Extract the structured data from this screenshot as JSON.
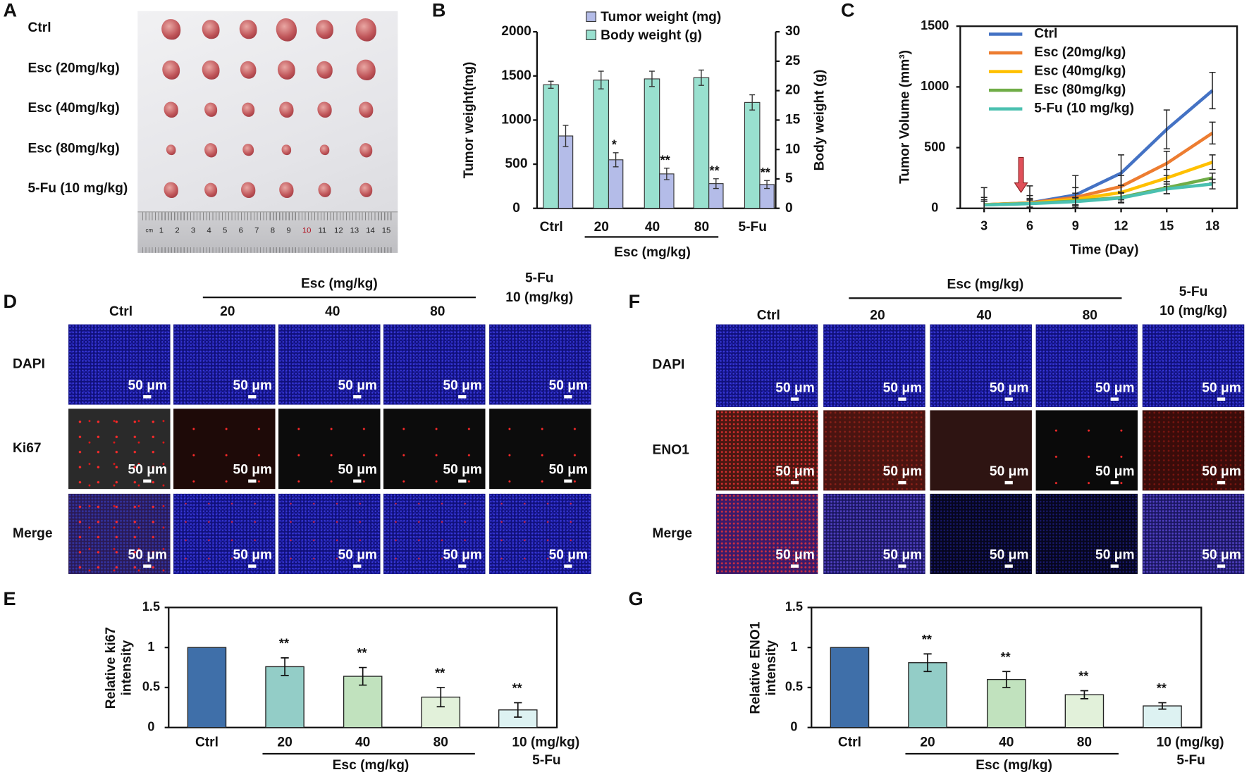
{
  "panel_labels": {
    "a": "A",
    "b": "B",
    "c": "C",
    "d": "D",
    "e": "E",
    "f": "F",
    "g": "G"
  },
  "panel_a": {
    "row_labels": [
      "Ctrl",
      "Esc (20mg/kg)",
      "Esc (40mg/kg)",
      "Esc (80mg/kg)",
      "5-Fu (10 mg/kg)"
    ],
    "ruler_numbers": [
      "1",
      "2",
      "3",
      "4",
      "5",
      "6",
      "7",
      "8",
      "9",
      "10",
      "11",
      "12",
      "13",
      "14",
      "15"
    ],
    "ruler_unit": "cm"
  },
  "panel_d": {
    "group_label": "Esc (mg/kg)",
    "columns": [
      "Ctrl",
      "20",
      "40",
      "80"
    ],
    "fu_label_1": "5-Fu",
    "fu_label_2": "10 (mg/kg)",
    "rows": [
      "DAPI",
      "Ki67",
      "Merge"
    ],
    "scale_label": "50 μm"
  },
  "panel_f": {
    "group_label": "Esc (mg/kg)",
    "columns": [
      "Ctrl",
      "20",
      "40",
      "80"
    ],
    "fu_label_1": "5-Fu",
    "fu_label_2": "10 (mg/kg)",
    "rows": [
      "DAPI",
      "ENO1",
      "Merge"
    ],
    "scale_label": "50 μm"
  },
  "chart_data": [
    {
      "id": "B",
      "type": "bar",
      "categories": [
        "Ctrl",
        "20",
        "40",
        "80",
        "5-Fu"
      ],
      "xlabel": "Esc (mg/kg)",
      "ylabel": "Tumor weight(mg)",
      "y2label": "Body weight (g)",
      "ylim": [
        0,
        2000
      ],
      "yticks": [
        "0",
        "500",
        "1000",
        "1500",
        "2000"
      ],
      "y2lim": [
        0,
        30
      ],
      "y2ticks": [
        "0",
        "5",
        "10",
        "15",
        "20",
        "25",
        "30"
      ],
      "legend": [
        "Tumor weight (mg)",
        "Body weight (g)"
      ],
      "legend_placement": "top",
      "series": [
        {
          "name": "Body weight (g)",
          "axis": "right",
          "color": "#99E0CF",
          "values": [
            21.0,
            21.8,
            22.0,
            22.2,
            18.0
          ],
          "errors": [
            0.6,
            1.5,
            1.3,
            1.3,
            1.3
          ]
        },
        {
          "name": "Tumor weight (mg)",
          "axis": "left",
          "color": "#B4BCE8",
          "values": [
            820,
            550,
            390,
            280,
            270
          ],
          "errors": [
            120,
            80,
            65,
            55,
            45
          ]
        }
      ],
      "significance": [
        "",
        "*",
        "**",
        "**",
        "**"
      ]
    },
    {
      "id": "C",
      "type": "line",
      "x": [
        3,
        6,
        9,
        12,
        15,
        18
      ],
      "xticks": [
        "3",
        "6",
        "9",
        "12",
        "15",
        "18"
      ],
      "xlabel": "Time (Day)",
      "ylabel": "Tumor Volume (mm³)",
      "ylim": [
        0,
        1500
      ],
      "yticks": [
        "0",
        "500",
        "1000",
        "1500"
      ],
      "legend_placement": "top-left",
      "arrow_day": 6,
      "arrow_color": "#E0505A",
      "series": [
        {
          "name": "Ctrl",
          "color": "#4472C4",
          "values": [
            30,
            45,
            110,
            290,
            650,
            970
          ],
          "errors": [
            140,
            140,
            160,
            150,
            160,
            150
          ]
        },
        {
          "name": "Esc (20mg/kg)",
          "color": "#ED7D31",
          "values": [
            30,
            45,
            90,
            180,
            370,
            620
          ],
          "errors": [
            60,
            60,
            80,
            90,
            100,
            90
          ]
        },
        {
          "name": "Esc (40mg/kg)",
          "color": "#FFC000",
          "values": [
            30,
            42,
            75,
            130,
            250,
            380
          ],
          "errors": [
            40,
            40,
            50,
            60,
            70,
            60
          ]
        },
        {
          "name": "Esc (80mg/kg)",
          "color": "#70AD47",
          "values": [
            28,
            40,
            60,
            90,
            170,
            250
          ],
          "errors": [
            30,
            30,
            30,
            40,
            50,
            40
          ]
        },
        {
          "name": "5-Fu (10 mg/kg)",
          "color": "#4BC0B0",
          "values": [
            28,
            38,
            55,
            85,
            160,
            200
          ],
          "errors": [
            30,
            30,
            30,
            40,
            40,
            40
          ]
        }
      ]
    },
    {
      "id": "E",
      "type": "bar",
      "categories": [
        "Ctrl",
        "20",
        "40",
        "80",
        "10 (mg/kg)"
      ],
      "group_label": "Esc (mg/kg)",
      "fu_label": "5-Fu",
      "ylabel_1": "Relative ki67",
      "ylabel_2": "intensity",
      "ylim": [
        0,
        1.5
      ],
      "yticks": [
        "0",
        "0.5",
        "1",
        "1.5"
      ],
      "values": [
        1.0,
        0.76,
        0.64,
        0.38,
        0.22
      ],
      "errors": [
        0,
        0.11,
        0.11,
        0.12,
        0.09
      ],
      "colors": [
        "#3F6FA9",
        "#93CDC7",
        "#C1E2BE",
        "#E2F1DA",
        "#DDF2F2"
      ],
      "significance": [
        "",
        "**",
        "**",
        "**",
        "**"
      ]
    },
    {
      "id": "G",
      "type": "bar",
      "categories": [
        "Ctrl",
        "20",
        "40",
        "80",
        "10 (mg/kg)"
      ],
      "group_label": "Esc (mg/kg)",
      "fu_label": "5-Fu",
      "ylabel_1": "Relative ENO1",
      "ylabel_2": "intensity",
      "ylim": [
        0,
        1.5
      ],
      "yticks": [
        "0",
        "0.5",
        "1",
        "1.5"
      ],
      "values": [
        1.0,
        0.81,
        0.6,
        0.41,
        0.27
      ],
      "errors": [
        0,
        0.11,
        0.1,
        0.05,
        0.04
      ],
      "colors": [
        "#3F6FA9",
        "#93CDC7",
        "#C1E2BE",
        "#E2F1DA",
        "#DDF2F2"
      ],
      "significance": [
        "",
        "**",
        "**",
        "**",
        "**"
      ]
    }
  ]
}
